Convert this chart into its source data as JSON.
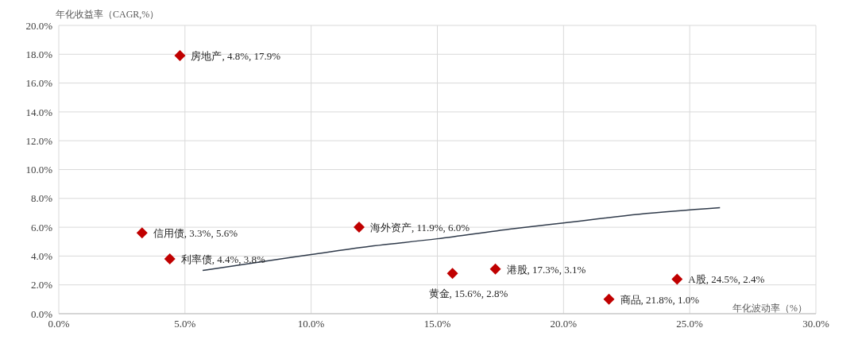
{
  "chart_data": {
    "type": "scatter",
    "xlabel": "年化波动率（%）",
    "ylabel": "年化收益率（CAGR,%）",
    "xlim": [
      0,
      30
    ],
    "xticks": [
      {
        "value": 0,
        "label": "0.0%"
      },
      {
        "value": 5,
        "label": "5.0%"
      },
      {
        "value": 10,
        "label": "10.0%"
      },
      {
        "value": 15,
        "label": "15.0%"
      },
      {
        "value": 20,
        "label": "20.0%"
      },
      {
        "value": 25,
        "label": "25.0%"
      },
      {
        "value": 30,
        "label": "30.0%"
      }
    ],
    "ylim": [
      0,
      20
    ],
    "yticks": [
      {
        "value": 0,
        "label": "0.0%"
      },
      {
        "value": 2,
        "label": "2.0%"
      },
      {
        "value": 4,
        "label": "4.0%"
      },
      {
        "value": 6,
        "label": "6.0%"
      },
      {
        "value": 8,
        "label": "8.0%"
      },
      {
        "value": 10,
        "label": "10.0%"
      },
      {
        "value": 12,
        "label": "12.0%"
      },
      {
        "value": 14,
        "label": "14.0%"
      },
      {
        "value": 16,
        "label": "16.0%"
      },
      {
        "value": 18,
        "label": "18.0%"
      },
      {
        "value": 20,
        "label": "20.0%"
      }
    ],
    "grid": true,
    "marker": "diamond",
    "series": [
      {
        "type": "scatter",
        "color": "#c00000",
        "x": [
          4.8,
          3.3,
          4.4,
          11.9,
          15.6,
          17.3,
          24.5,
          21.8
        ],
        "values": [
          17.9,
          5.6,
          3.8,
          6.0,
          2.8,
          3.1,
          2.4,
          1.0
        ],
        "value_labels": [
          "房地产, 4.8%, 17.9%",
          "信用债, 3.3%, 5.6%",
          "利率债, 4.4%, 3.8%",
          "海外资产, 11.9%, 6.0%",
          "黄金, 15.6%, 2.8%",
          "港股, 17.3%, 3.1%",
          "A股, 24.5%, 2.4%",
          "商品, 21.8%, 1.0%"
        ]
      },
      {
        "type": "line",
        "color": "#2f3a4a",
        "marker": "none",
        "line_style": "solid",
        "x": [
          5.7,
          8,
          10,
          12,
          15,
          18,
          20,
          23,
          26.2
        ],
        "values": [
          3.0,
          3.6,
          4.1,
          4.6,
          5.2,
          5.9,
          6.3,
          6.9,
          7.35
        ]
      }
    ]
  }
}
